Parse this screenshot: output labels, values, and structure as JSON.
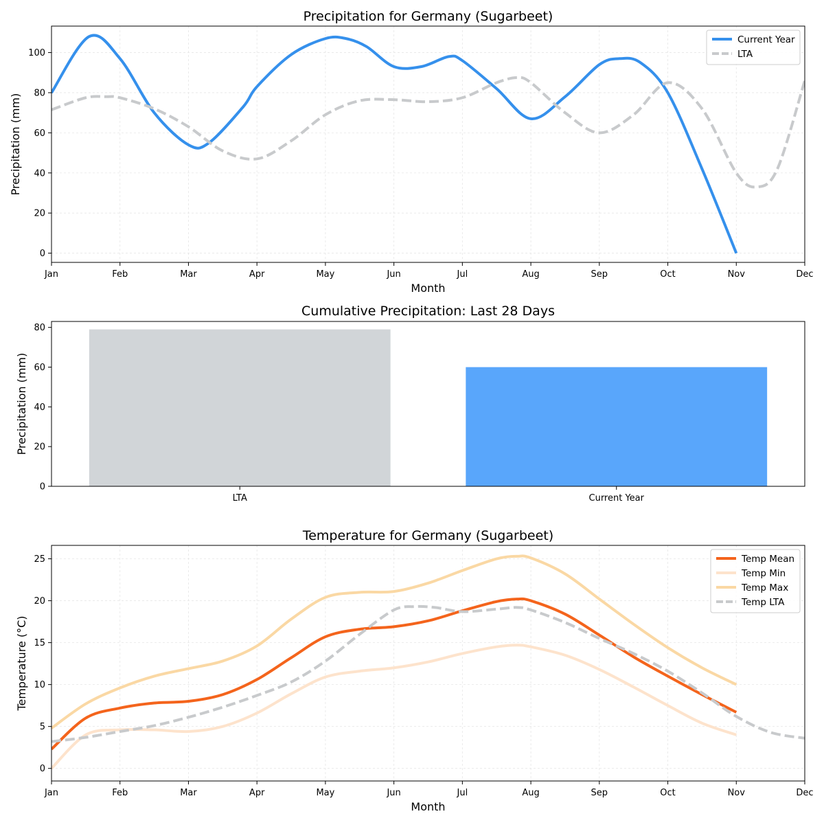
{
  "chart_data": [
    {
      "type": "line",
      "title": "Precipitation for Germany (Sugarbeet)",
      "xlabel": "Month",
      "ylabel": "Precipitation (mm)",
      "xticks": [
        "Jan",
        "Feb",
        "Mar",
        "Apr",
        "May",
        "Jun",
        "Jul",
        "Aug",
        "Sep",
        "Oct",
        "Nov",
        "Dec"
      ],
      "yticks": [
        0,
        20,
        40,
        60,
        80,
        100
      ],
      "xlim": [
        0,
        11
      ],
      "ylim": [
        -4.6,
        113.2
      ],
      "grid": true,
      "legend": "top-right",
      "series": [
        {
          "name": "Current Year",
          "color": "#3590ec",
          "style": "solid",
          "x": [
            0,
            0.55,
            1,
            1.5,
            2,
            2.3,
            2.8,
            3,
            3.5,
            4,
            4.3,
            4.6,
            5,
            5.4,
            5.8,
            6,
            6.5,
            7,
            7.5,
            8,
            8.3,
            8.6,
            9,
            9.5,
            10
          ],
          "y": [
            80,
            108,
            97,
            70,
            54,
            55,
            73,
            83,
            99,
            107,
            107,
            103,
            93,
            93,
            98,
            96,
            82,
            67,
            78,
            94,
            97,
            95,
            80,
            42,
            0
          ]
        },
        {
          "name": "LTA",
          "color": "#c8cacc",
          "style": "dashed",
          "x": [
            0,
            0.5,
            0.8,
            1,
            1.5,
            2,
            2.5,
            3,
            3.5,
            4,
            4.5,
            5,
            5.5,
            6,
            6.5,
            6.8,
            7,
            7.5,
            8,
            8.5,
            9,
            9.5,
            10,
            10.3,
            10.6,
            11
          ],
          "y": [
            71.5,
            77.5,
            78,
            77.5,
            72,
            63,
            51,
            47,
            56,
            69,
            76,
            76.5,
            75.5,
            77.5,
            85,
            87.5,
            85,
            70,
            60,
            69,
            85,
            72,
            40,
            33,
            42,
            86
          ]
        }
      ]
    },
    {
      "type": "bar",
      "title": "Cumulative Precipitation: Last 28 Days",
      "xlabel": "",
      "ylabel": "Precipitation (mm)",
      "categories": [
        "LTA",
        "Current Year"
      ],
      "values": [
        79,
        60
      ],
      "colors": [
        "#d1d5d8",
        "#59a6fb"
      ],
      "yticks": [
        0,
        20,
        40,
        60,
        80
      ],
      "ylim": [
        0,
        83
      ]
    },
    {
      "type": "line",
      "title": "Temperature for Germany (Sugarbeet)",
      "xlabel": "Month",
      "ylabel": "Temperature (°C)",
      "xticks": [
        "Jan",
        "Feb",
        "Mar",
        "Apr",
        "May",
        "Jun",
        "Jul",
        "Aug",
        "Sep",
        "Oct",
        "Nov",
        "Dec"
      ],
      "yticks": [
        0,
        5,
        10,
        15,
        20,
        25
      ],
      "xlim": [
        0,
        11
      ],
      "ylim": [
        -1.5,
        26.6
      ],
      "grid": true,
      "legend": "top-right",
      "series": [
        {
          "name": "Temp Mean",
          "color": "#f4641c",
          "style": "solid",
          "x": [
            0,
            0.5,
            1,
            1.5,
            2,
            2.5,
            3,
            3.5,
            4,
            4.5,
            5,
            5.5,
            6,
            6.5,
            6.8,
            7,
            7.5,
            8,
            8.5,
            9,
            9.5,
            10
          ],
          "y": [
            2.3,
            6,
            7.2,
            7.8,
            8,
            8.8,
            10.6,
            13.2,
            15.7,
            16.6,
            16.9,
            17.6,
            18.8,
            19.9,
            20.2,
            20,
            18.4,
            15.9,
            13.3,
            11,
            8.8,
            6.7
          ]
        },
        {
          "name": "Temp Min",
          "color": "#fde3cc",
          "style": "solid",
          "x": [
            0,
            0.5,
            1,
            1.5,
            2,
            2.5,
            3,
            3.5,
            4,
            4.5,
            5,
            5.5,
            6,
            6.5,
            6.8,
            7,
            7.5,
            8,
            8.5,
            9,
            9.5,
            10
          ],
          "y": [
            0,
            4,
            4.6,
            4.6,
            4.4,
            5,
            6.6,
            8.9,
            10.9,
            11.6,
            12,
            12.7,
            13.7,
            14.5,
            14.7,
            14.5,
            13.5,
            11.8,
            9.7,
            7.5,
            5.4,
            4
          ]
        },
        {
          "name": "Temp Max",
          "color": "#fad8a4",
          "style": "solid",
          "x": [
            0,
            0.5,
            1,
            1.5,
            2,
            2.5,
            3,
            3.5,
            4,
            4.5,
            5,
            5.5,
            6,
            6.5,
            6.8,
            7,
            7.5,
            8,
            8.5,
            9,
            9.5,
            10
          ],
          "y": [
            4.8,
            7.7,
            9.6,
            11,
            11.9,
            12.8,
            14.6,
            17.8,
            20.4,
            21,
            21.1,
            22.1,
            23.6,
            25,
            25.3,
            25.1,
            23.2,
            20.2,
            17.2,
            14.4,
            12,
            10
          ]
        },
        {
          "name": "Temp LTA",
          "color": "#c8cacc",
          "style": "dashed",
          "x": [
            0,
            0.5,
            1,
            1.5,
            2,
            2.5,
            3,
            3.5,
            4,
            4.5,
            5,
            5.3,
            5.6,
            6,
            6.5,
            6.8,
            7,
            7.5,
            8,
            8.5,
            9,
            9.5,
            10,
            10.5,
            11
          ],
          "y": [
            3.2,
            3.7,
            4.4,
            5.1,
            6.1,
            7.3,
            8.7,
            10.3,
            12.8,
            16,
            18.9,
            19.3,
            19.2,
            18.7,
            19,
            19.2,
            18.9,
            17.4,
            15.5,
            13.7,
            11.6,
            9,
            6.2,
            4.3,
            3.6
          ]
        }
      ]
    }
  ]
}
